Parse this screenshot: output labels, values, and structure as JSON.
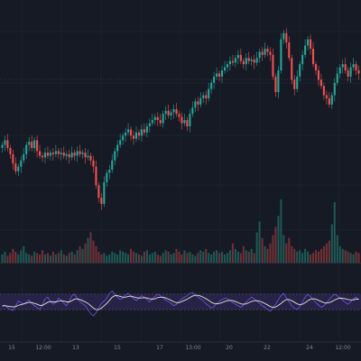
{
  "chart_data": {
    "type": "candlestick",
    "description_note": "",
    "price_panel": {
      "grid": true,
      "reference_line": 70,
      "ylim": [
        0,
        100
      ],
      "candles_close": [
        52,
        55,
        50,
        46,
        40,
        35,
        38,
        42,
        46,
        52,
        54,
        50,
        55,
        48,
        45,
        44,
        47,
        45,
        47,
        46,
        48,
        46,
        47,
        45,
        46,
        44,
        47,
        45,
        48,
        46,
        47,
        44,
        45,
        42,
        38,
        26,
        18,
        14,
        28,
        34,
        36,
        42,
        48,
        52,
        55,
        58,
        60,
        62,
        58,
        56,
        60,
        58,
        62,
        60,
        64,
        66,
        68,
        70,
        68,
        66,
        72,
        74,
        71,
        73,
        75,
        72,
        70,
        66,
        68,
        64,
        72,
        76,
        80,
        78,
        82,
        84,
        82,
        88,
        92,
        96,
        98,
        96,
        100,
        102,
        104,
        106,
        105,
        108,
        110,
        106,
        104,
        108,
        106,
        107,
        105,
        108,
        112,
        110,
        114,
        112,
        110,
        96,
        86,
        100,
        120,
        124,
        118,
        108,
        94,
        88,
        96,
        104,
        110,
        116,
        120,
        114,
        104,
        100,
        94,
        90,
        84,
        82,
        78,
        84,
        92,
        98,
        102,
        104,
        100,
        96,
        102,
        104,
        100,
        98
      ]
    },
    "volume_panel": {
      "values": [
        6,
        8,
        5,
        7,
        10,
        8,
        6,
        9,
        12,
        7,
        6,
        5,
        8,
        7,
        6,
        9,
        6,
        7,
        5,
        8,
        6,
        7,
        9,
        6,
        5,
        7,
        8,
        6,
        9,
        12,
        10,
        14,
        18,
        22,
        16,
        12,
        8,
        6,
        7,
        5,
        6,
        8,
        7,
        6,
        9,
        8,
        7,
        6,
        10,
        8,
        7,
        6,
        5,
        8,
        9,
        6,
        7,
        8,
        6,
        5,
        7,
        9,
        8,
        6,
        7,
        10,
        8,
        6,
        9,
        7,
        8,
        6,
        5,
        7,
        9,
        8,
        10,
        7,
        6,
        8,
        9,
        7,
        8,
        6,
        7,
        9,
        14,
        10,
        8,
        7,
        12,
        9,
        8,
        10,
        7,
        22,
        30,
        18,
        12,
        10,
        14,
        20,
        26,
        34,
        46,
        20,
        14,
        18,
        12,
        10,
        8,
        9,
        7,
        10,
        8,
        6,
        7,
        9,
        8,
        10,
        12,
        14,
        16,
        28,
        44,
        20,
        12,
        10,
        9,
        8,
        7,
        6,
        8,
        7
      ]
    },
    "oscillator_panel": {
      "band": [
        30,
        70
      ],
      "ylim": [
        0,
        100
      ],
      "values": [
        38,
        42,
        35,
        30,
        28,
        40,
        52,
        48,
        44,
        50,
        55,
        46,
        40,
        36,
        30,
        42,
        58,
        62,
        50,
        44,
        48,
        60,
        55,
        46,
        40,
        52,
        66,
        70,
        58,
        50,
        45,
        40,
        30,
        20,
        14,
        22,
        34,
        46,
        52,
        60,
        72,
        78,
        70,
        62,
        56,
        60,
        68,
        72,
        64,
        58,
        54,
        60,
        66,
        62,
        56,
        50,
        58,
        64,
        70,
        66,
        60,
        54,
        50,
        46,
        40,
        44,
        52,
        58,
        62,
        66,
        72,
        74,
        68,
        62,
        58,
        52,
        46,
        40,
        34,
        38,
        46,
        52,
        56,
        60,
        58,
        54,
        48,
        44,
        40,
        36,
        42,
        50,
        56,
        62,
        58,
        52,
        46,
        40,
        36,
        30,
        26,
        34,
        44,
        56,
        66,
        72,
        60,
        50,
        40,
        34,
        30,
        38,
        50,
        62,
        70,
        64,
        56,
        48,
        42,
        36,
        40,
        48,
        56,
        64,
        70,
        66,
        60,
        54,
        48,
        44,
        50,
        58,
        62,
        56
      ],
      "smoothed": [
        40,
        40,
        39,
        38,
        37,
        38,
        41,
        43,
        45,
        47,
        49,
        48,
        46,
        44,
        41,
        41,
        45,
        49,
        51,
        50,
        50,
        52,
        53,
        52,
        50,
        50,
        53,
        57,
        58,
        56,
        53,
        50,
        46,
        40,
        34,
        30,
        30,
        34,
        40,
        46,
        54,
        62,
        66,
        66,
        64,
        62,
        62,
        64,
        65,
        63,
        61,
        60,
        60,
        61,
        60,
        58,
        57,
        58,
        61,
        62,
        62,
        60,
        57,
        54,
        50,
        48,
        48,
        51,
        54,
        57,
        61,
        65,
        67,
        67,
        65,
        62,
        58,
        54,
        49,
        46,
        45,
        46,
        48,
        51,
        53,
        54,
        53,
        51,
        48,
        45,
        44,
        45,
        48,
        51,
        53,
        53,
        52,
        49,
        46,
        42,
        38,
        36,
        37,
        41,
        46,
        52,
        56,
        56,
        53,
        49,
        45,
        43,
        44,
        48,
        53,
        57,
        58,
        57,
        54,
        51,
        48,
        47,
        48,
        51,
        55,
        58,
        60,
        59,
        58,
        56,
        55,
        55,
        57,
        57
      ]
    },
    "x_tick_labels": [
      "15",
      "12:00",
      "13",
      "15",
      "17",
      "13:00",
      "20",
      "22",
      "24",
      "12:00"
    ]
  }
}
